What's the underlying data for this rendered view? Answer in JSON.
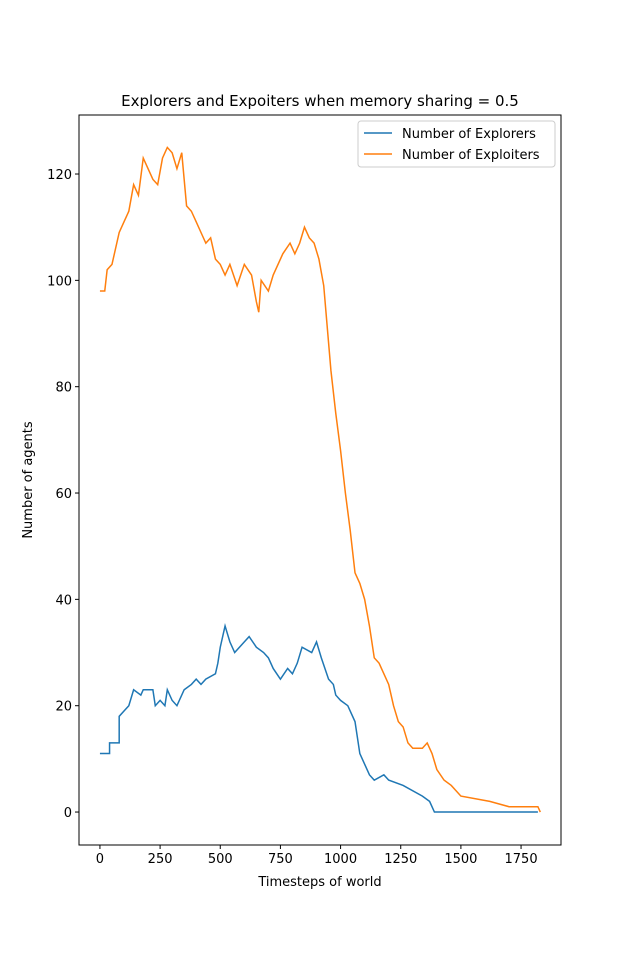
{
  "chart_data": {
    "type": "line",
    "title": "Explorers and Expoiters when memory sharing = 0.5",
    "xlabel": "Timesteps of world",
    "ylabel": "Number of agents",
    "xlim": [
      -87,
      1916
    ],
    "ylim": [
      -6.2,
      131.1
    ],
    "xticks": [
      0,
      250,
      500,
      750,
      1000,
      1250,
      1500,
      1750
    ],
    "yticks": [
      0,
      20,
      40,
      60,
      80,
      100,
      120
    ],
    "legend": "upper right",
    "series": [
      {
        "name": "Number of Explorers",
        "color": "#1f77b4",
        "x": [
          0,
          40,
          40,
          80,
          80,
          100,
          120,
          140,
          170,
          180,
          220,
          230,
          250,
          270,
          280,
          300,
          320,
          350,
          380,
          400,
          420,
          440,
          480,
          490,
          500,
          520,
          540,
          560,
          600,
          620,
          650,
          680,
          700,
          720,
          750,
          780,
          800,
          820,
          840,
          880,
          900,
          920,
          950,
          970,
          980,
          1000,
          1030,
          1060,
          1080,
          1100,
          1120,
          1140,
          1180,
          1200,
          1260,
          1340,
          1370,
          1390,
          1820
        ],
        "values": [
          11,
          11,
          13,
          13,
          18,
          19,
          20,
          23,
          22,
          23,
          23,
          20,
          21,
          20,
          23,
          21,
          20,
          23,
          24,
          25,
          24,
          25,
          26,
          28,
          31,
          35,
          32,
          30,
          32,
          33,
          31,
          30,
          29,
          27,
          25,
          27,
          26,
          28,
          31,
          30,
          32,
          29,
          25,
          24,
          22,
          21,
          20,
          17,
          11,
          9,
          7,
          6,
          7,
          6,
          5,
          3,
          2,
          0,
          0
        ]
      },
      {
        "name": "Number of Exploiters",
        "color": "#ff7f0e",
        "x": [
          0,
          20,
          30,
          50,
          80,
          100,
          120,
          140,
          160,
          180,
          200,
          220,
          240,
          260,
          280,
          300,
          320,
          340,
          360,
          380,
          400,
          420,
          440,
          460,
          480,
          500,
          520,
          540,
          570,
          600,
          630,
          650,
          660,
          670,
          700,
          720,
          760,
          790,
          810,
          830,
          850,
          870,
          890,
          910,
          930,
          960,
          980,
          1000,
          1020,
          1040,
          1060,
          1080,
          1100,
          1120,
          1140,
          1160,
          1180,
          1200,
          1220,
          1240,
          1260,
          1280,
          1300,
          1340,
          1360,
          1380,
          1400,
          1430,
          1460,
          1500,
          1620,
          1700,
          1820,
          1830
        ],
        "values": [
          98,
          98,
          102,
          103,
          109,
          111,
          113,
          118,
          116,
          123,
          121,
          119,
          118,
          123,
          125,
          124,
          121,
          124,
          114,
          113,
          111,
          109,
          107,
          108,
          104,
          103,
          101,
          103,
          99,
          103,
          101,
          96,
          94,
          100,
          98,
          101,
          105,
          107,
          105,
          107,
          110,
          108,
          107,
          104,
          99,
          83,
          75,
          68,
          60,
          53,
          45,
          43,
          40,
          35,
          29,
          28,
          26,
          24,
          20,
          17,
          16,
          13,
          12,
          12,
          13,
          11,
          8,
          6,
          5,
          3,
          2,
          1,
          1,
          0
        ]
      }
    ]
  }
}
